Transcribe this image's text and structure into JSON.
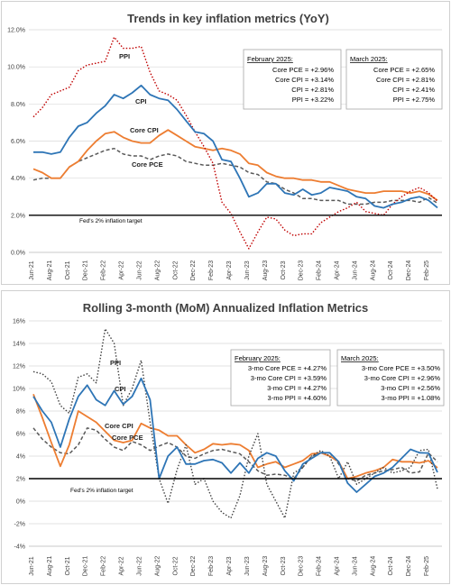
{
  "chart_data": [
    {
      "type": "line",
      "title": "Trends in key inflation metrics (YoY)",
      "ylim": [
        0,
        12
      ],
      "y_ticks": [
        "0.0%",
        "2.0%",
        "4.0%",
        "6.0%",
        "8.0%",
        "10.0%",
        "12.0%"
      ],
      "x_ticks": [
        "Jun-21",
        "Aug-21",
        "Oct-21",
        "Dec-21",
        "Feb-22",
        "Apr-22",
        "Jun-22",
        "Aug-22",
        "Oct-22",
        "Dec-22",
        "Feb-23",
        "Apr-23",
        "Jun-23",
        "Aug-23",
        "Oct-23",
        "Dec-23",
        "Feb-24",
        "Apr-24",
        "Jun-24",
        "Aug-24",
        "Oct-24",
        "Dec-24",
        "Feb-25"
      ],
      "x": [
        "Jun-21",
        "Jul-21",
        "Aug-21",
        "Sep-21",
        "Oct-21",
        "Nov-21",
        "Dec-21",
        "Jan-22",
        "Feb-22",
        "Mar-22",
        "Apr-22",
        "May-22",
        "Jun-22",
        "Jul-22",
        "Aug-22",
        "Sep-22",
        "Oct-22",
        "Nov-22",
        "Dec-22",
        "Jan-23",
        "Feb-23",
        "Mar-23",
        "Apr-23",
        "May-23",
        "Jun-23",
        "Jul-23",
        "Aug-23",
        "Sep-23",
        "Oct-23",
        "Nov-23",
        "Dec-23",
        "Jan-24",
        "Feb-24",
        "Mar-24",
        "Apr-24",
        "May-24",
        "Jun-24",
        "Jul-24",
        "Aug-24",
        "Sep-24",
        "Oct-24",
        "Nov-24",
        "Dec-24",
        "Jan-25",
        "Feb-25",
        "Mar-25"
      ],
      "series": [
        {
          "name": "PPI",
          "color": "#c00000",
          "dash": "dot",
          "values": [
            7.3,
            7.8,
            8.5,
            8.7,
            8.9,
            9.8,
            10.1,
            10.2,
            10.3,
            11.6,
            11.0,
            11.0,
            11.1,
            9.7,
            8.7,
            8.5,
            8.2,
            7.4,
            6.5,
            5.7,
            4.8,
            2.7,
            2.1,
            1.1,
            0.2,
            1.1,
            1.9,
            1.8,
            1.2,
            0.9,
            1.0,
            1.0,
            1.6,
            1.9,
            2.2,
            2.4,
            2.7,
            2.2,
            2.1,
            2.0,
            2.6,
            3.0,
            3.3,
            3.5,
            3.22,
            2.75
          ]
        },
        {
          "name": "CPI",
          "color": "#2e75b6",
          "dash": "solid",
          "values": [
            5.4,
            5.4,
            5.3,
            5.4,
            6.2,
            6.8,
            7.0,
            7.5,
            7.9,
            8.5,
            8.3,
            8.6,
            9.0,
            8.5,
            8.3,
            8.2,
            7.7,
            7.1,
            6.5,
            6.4,
            6.0,
            5.0,
            4.9,
            4.0,
            3.0,
            3.2,
            3.7,
            3.7,
            3.2,
            3.1,
            3.4,
            3.1,
            3.2,
            3.5,
            3.4,
            3.3,
            3.0,
            2.9,
            2.5,
            2.4,
            2.6,
            2.7,
            2.9,
            3.0,
            2.81,
            2.41
          ]
        },
        {
          "name": "Core CPI",
          "color": "#ed7d31",
          "dash": "solid",
          "values": [
            4.5,
            4.3,
            4.0,
            4.0,
            4.6,
            4.9,
            5.5,
            6.0,
            6.4,
            6.5,
            6.2,
            6.0,
            5.9,
            5.9,
            6.3,
            6.6,
            6.3,
            6.0,
            5.7,
            5.6,
            5.5,
            5.6,
            5.5,
            5.3,
            4.8,
            4.7,
            4.3,
            4.1,
            4.0,
            4.0,
            3.9,
            3.9,
            3.8,
            3.8,
            3.6,
            3.4,
            3.3,
            3.2,
            3.2,
            3.3,
            3.3,
            3.3,
            3.2,
            3.3,
            3.14,
            2.81
          ]
        },
        {
          "name": "Core PCE",
          "color": "#595959",
          "dash": "dash",
          "values": [
            3.9,
            4.0,
            4.0,
            4.0,
            4.6,
            4.9,
            5.1,
            5.3,
            5.5,
            5.6,
            5.3,
            5.2,
            5.2,
            5.0,
            5.2,
            5.3,
            5.2,
            4.9,
            4.8,
            4.7,
            4.7,
            4.8,
            4.7,
            4.6,
            4.3,
            4.2,
            3.8,
            3.7,
            3.4,
            3.2,
            2.9,
            2.9,
            2.8,
            2.8,
            2.8,
            2.6,
            2.6,
            2.6,
            2.7,
            2.7,
            2.8,
            2.8,
            2.8,
            2.7,
            2.96,
            2.65
          ]
        }
      ],
      "reference_line": {
        "value": 2.0,
        "label": "Fed's 2% inflation target"
      },
      "annotations": {
        "box1": {
          "header": "February 2025:",
          "lines": [
            "Core PCE = +2.96%",
            "Core CPI = +3.14%",
            "CPI = +2.81%",
            "PPI = +3.22%"
          ]
        },
        "box2": {
          "header": "March 2025:",
          "lines": [
            "Core PCE = +2.65%",
            "Core CPI = +2.81%",
            "CPI = +2.41%",
            "PPI = +2.75%"
          ]
        }
      },
      "grid": true,
      "legend": "inline labels"
    },
    {
      "type": "line",
      "title": "Rolling 3-month (MoM) Annualized Inflation Metrics",
      "ylim": [
        -4,
        16
      ],
      "y_ticks": [
        "-4%",
        "-2%",
        "0%",
        "2%",
        "4%",
        "6%",
        "8%",
        "10%",
        "12%",
        "14%",
        "16%"
      ],
      "x_ticks": [
        "Jun-21",
        "Aug-21",
        "Oct-21",
        "Dec-21",
        "Feb-22",
        "Apr-22",
        "Jun-22",
        "Aug-22",
        "Oct-22",
        "Dec-22",
        "Feb-23",
        "Apr-23",
        "Jun-23",
        "Aug-23",
        "Oct-23",
        "Dec-23",
        "Feb-24",
        "Apr-24",
        "Jun-24",
        "Aug-24",
        "Oct-24",
        "Dec-24",
        "Feb-25"
      ],
      "x": [
        "Jun-21",
        "Jul-21",
        "Aug-21",
        "Sep-21",
        "Oct-21",
        "Nov-21",
        "Dec-21",
        "Jan-22",
        "Feb-22",
        "Mar-22",
        "Apr-22",
        "May-22",
        "Jun-22",
        "Jul-22",
        "Aug-22",
        "Sep-22",
        "Oct-22",
        "Nov-22",
        "Dec-22",
        "Jan-23",
        "Feb-23",
        "Mar-23",
        "Apr-23",
        "May-23",
        "Jun-23",
        "Jul-23",
        "Aug-23",
        "Sep-23",
        "Oct-23",
        "Nov-23",
        "Dec-23",
        "Jan-24",
        "Feb-24",
        "Mar-24",
        "Apr-24",
        "May-24",
        "Jun-24",
        "Jul-24",
        "Aug-24",
        "Sep-24",
        "Oct-24",
        "Nov-24",
        "Dec-24",
        "Jan-25",
        "Feb-25",
        "Mar-25"
      ],
      "series": [
        {
          "name": "PPI",
          "color": "#404040",
          "dash": "dot",
          "values": [
            11.5,
            11.3,
            10.6,
            8.5,
            7.8,
            11.0,
            11.3,
            10.5,
            15.3,
            14.0,
            8.5,
            10.0,
            12.5,
            7.0,
            2.0,
            -0.2,
            2.8,
            5.0,
            1.5,
            2.0,
            0.0,
            -1.0,
            -1.5,
            0.5,
            4.0,
            6.0,
            1.5,
            0.0,
            -1.5,
            2.5,
            3.0,
            4.0,
            4.5,
            4.0,
            2.0,
            3.5,
            1.5,
            2.0,
            2.5,
            3.0,
            2.5,
            2.7,
            3.0,
            4.5,
            4.6,
            1.08
          ]
        },
        {
          "name": "CPI",
          "color": "#2e75b6",
          "dash": "solid",
          "values": [
            9.3,
            8.0,
            7.0,
            4.8,
            7.3,
            9.3,
            10.3,
            9.0,
            8.5,
            9.8,
            8.6,
            9.3,
            10.9,
            9.0,
            2.0,
            4.0,
            4.8,
            3.3,
            3.3,
            3.6,
            3.7,
            3.4,
            2.5,
            3.4,
            2.5,
            3.8,
            4.3,
            4.0,
            2.7,
            1.8,
            3.3,
            3.8,
            4.3,
            4.3,
            3.5,
            1.6,
            0.8,
            1.5,
            2.2,
            2.5,
            3.0,
            3.8,
            4.6,
            4.3,
            4.27,
            2.56
          ]
        },
        {
          "name": "Core CPI",
          "color": "#ed7d31",
          "dash": "solid",
          "values": [
            9.5,
            7.4,
            5.2,
            3.1,
            5.0,
            8.0,
            7.5,
            7.0,
            6.2,
            5.4,
            5.2,
            5.4,
            6.9,
            6.5,
            6.3,
            5.8,
            5.8,
            5.0,
            4.3,
            4.6,
            5.1,
            5.0,
            5.1,
            5.0,
            4.5,
            3.0,
            3.3,
            3.5,
            3.0,
            3.3,
            3.6,
            4.2,
            4.3,
            4.0,
            3.5,
            2.0,
            2.2,
            2.5,
            2.7,
            3.0,
            3.7,
            3.5,
            3.5,
            3.4,
            3.59,
            2.96
          ]
        },
        {
          "name": "Core PCE",
          "color": "#595959",
          "dash": "dash",
          "values": [
            6.5,
            5.5,
            4.8,
            4.3,
            4.2,
            5.0,
            6.5,
            6.3,
            5.5,
            4.8,
            4.5,
            5.3,
            5.0,
            4.5,
            4.9,
            5.2,
            4.8,
            4.0,
            3.8,
            4.2,
            4.5,
            4.6,
            4.4,
            4.2,
            3.5,
            2.7,
            2.3,
            2.4,
            2.3,
            2.0,
            3.0,
            4.0,
            4.3,
            4.3,
            3.3,
            2.0,
            1.8,
            2.3,
            2.5,
            2.7,
            2.8,
            3.0,
            2.5,
            2.6,
            4.27,
            3.5
          ]
        }
      ],
      "reference_line": {
        "value": 2.0,
        "label": "Fed's 2% inflation target"
      },
      "annotations": {
        "box1": {
          "header": "February 2025:",
          "lines": [
            "3-mo Core PCE = +4.27%",
            "3-mo Core CPI = +3.59%",
            "3-mo CPI = +4.27%",
            "3-mo PPI = +4.60%"
          ]
        },
        "box2": {
          "header": "March 2025:",
          "lines": [
            "3-mo Core PCE = +3.50%",
            "3-mo Core CPI = +2.96%",
            "3-mo CPI = +2.56%",
            "3-mo PPI = +1.08%"
          ]
        }
      },
      "grid": true,
      "legend": "inline labels"
    }
  ]
}
